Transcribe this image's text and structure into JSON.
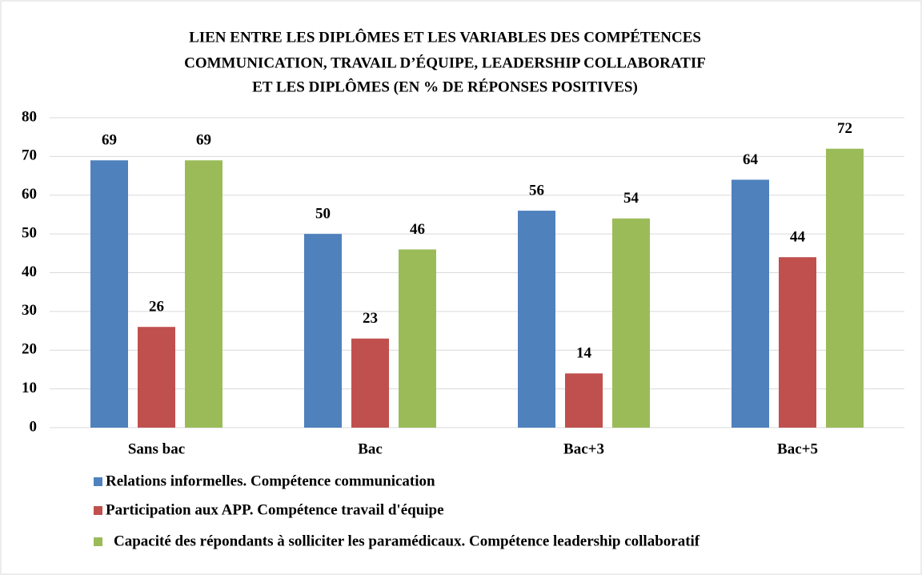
{
  "chart_data": {
    "type": "bar",
    "title": [
      "LIEN ENTRE LES DIPLÔMES ET LES VARIABLES DES COMPÉTENCES",
      "COMMUNICATION, TRAVAIL D’ÉQUIPE, LEADERSHIP COLLABORATIF",
      "ET LES DIPLÔMES (EN % DE RÉPONSES POSITIVES)"
    ],
    "categories": [
      "Sans bac",
      "Bac",
      "Bac+3",
      "Bac+5"
    ],
    "series": [
      {
        "name": "Relations informelles. Compétence communication",
        "color": "#4f81bd",
        "values": [
          69,
          50,
          56,
          64
        ]
      },
      {
        "name": "Participation aux APP. Compétence travail d'équipe",
        "color": "#c0504d",
        "values": [
          26,
          23,
          14,
          44
        ]
      },
      {
        "name": "Capacité des répondants à solliciter les paramédicaux. Compétence leadership collaboratif",
        "color": "#9bbb59",
        "values": [
          69,
          46,
          54,
          72
        ]
      }
    ],
    "ylim": [
      0,
      80
    ],
    "yticks": [
      0,
      10,
      20,
      30,
      40,
      50,
      60,
      70,
      80
    ],
    "grid": true,
    "legend": "bottom"
  }
}
